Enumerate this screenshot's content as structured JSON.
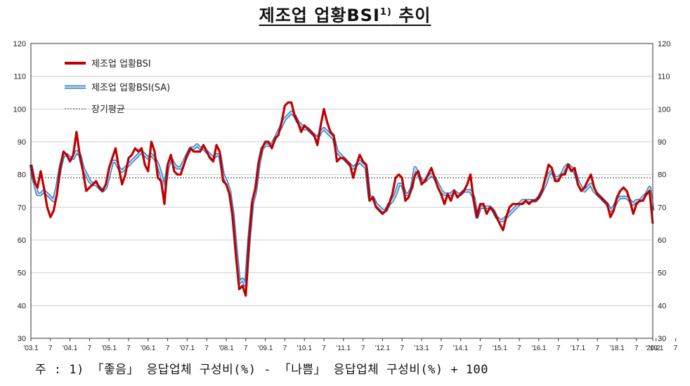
{
  "title": {
    "main": "제조업 업황BSI",
    "sup": "1)",
    "suffix": " 추이"
  },
  "note": "주 : 1) 「좋음」 응답업체 구성비(%) - 「나쁨」 응답업체 구성비(%) + 100",
  "colors": {
    "bsi": "#c00000",
    "sa_outer": "#3a7fc0",
    "sa_inner": "#bfe0f5",
    "avg": "#444444",
    "grid": "#cfcfcf",
    "frame": "#333333"
  },
  "chart_data": {
    "type": "line",
    "ylim": [
      30,
      120
    ],
    "yticks": [
      "30",
      "40",
      "50",
      "60",
      "70",
      "80",
      "90",
      "100",
      "110",
      "120"
    ],
    "x_start": "2003-01",
    "x_end": "2020-02",
    "xtick_labels": [
      "'03.1",
      "7",
      "'04.1",
      "7",
      "'05.1",
      "7",
      "'06.1",
      "7",
      "'07.1",
      "7",
      "'08.1",
      "7",
      "'09.1",
      "7",
      "'10.1",
      "7",
      "'11.1",
      "7",
      "'12.1",
      "7",
      "'13.1",
      "7",
      "'14.1",
      "7",
      "'15.1",
      "7",
      "'16.1",
      "7",
      "'17.1",
      "7",
      "'18.1",
      "7",
      "'19.1",
      "7",
      "'20.2"
    ],
    "grid": true,
    "legend": {
      "position": "top-left"
    },
    "long_term_average": 79,
    "series": [
      {
        "name": "제조업 업황BSI",
        "values": [
          83,
          78,
          76,
          81,
          76,
          70,
          67,
          69,
          74,
          82,
          87,
          86,
          84,
          86,
          93,
          86,
          81,
          75,
          76,
          77,
          78,
          76,
          75,
          77,
          82,
          85,
          88,
          82,
          77,
          80,
          85,
          86,
          88,
          87,
          88,
          83,
          81,
          90,
          87,
          79,
          78,
          71,
          83,
          86,
          81,
          80,
          80,
          83,
          86,
          88,
          87,
          87,
          87,
          89,
          87,
          85,
          84,
          89,
          87,
          78,
          77,
          74,
          67,
          55,
          45,
          46,
          43,
          60,
          72,
          76,
          84,
          88,
          90,
          90,
          88,
          91,
          92,
          96,
          101,
          102,
          102,
          98,
          96,
          93,
          95,
          94,
          93,
          92,
          89,
          95,
          100,
          96,
          93,
          92,
          84,
          85,
          85,
          84,
          83,
          79,
          83,
          86,
          84,
          83,
          72,
          73,
          70,
          69,
          68,
          69,
          71,
          74,
          79,
          80,
          79,
          72,
          73,
          76,
          80,
          81,
          77,
          78,
          80,
          82,
          79,
          76,
          74,
          71,
          74,
          72,
          75,
          73,
          74,
          75,
          77,
          80,
          72,
          67,
          71,
          71,
          68,
          70,
          69,
          67,
          65,
          63,
          67,
          70,
          71,
          71,
          71,
          71,
          72,
          71,
          72,
          72,
          73,
          75,
          79,
          83,
          82,
          78,
          78,
          80,
          80,
          83,
          81,
          82,
          77,
          75,
          76,
          78,
          80,
          76,
          74,
          73,
          72,
          71,
          67,
          69,
          73,
          75,
          76,
          75,
          72,
          68,
          71,
          72,
          72,
          74,
          75,
          65
        ],
        "style": "thick-red"
      },
      {
        "name": "제조업 업황BSI(SA)",
        "values": [
          83,
          78,
          74,
          74,
          75,
          74,
          73,
          72,
          76,
          82,
          86,
          86,
          85,
          85,
          87,
          86,
          82,
          80,
          78,
          77,
          77,
          76,
          75,
          76,
          80,
          84,
          84,
          82,
          81,
          82,
          83,
          84,
          85,
          86,
          87,
          86,
          85,
          86,
          85,
          83,
          80,
          75,
          82,
          85,
          83,
          82,
          82,
          84,
          86,
          88,
          88,
          89,
          88,
          88,
          87,
          86,
          85,
          86,
          86,
          80,
          78,
          75,
          68,
          57,
          47,
          48,
          46,
          60,
          71,
          75,
          83,
          88,
          89,
          89,
          89,
          91,
          93,
          95,
          97,
          98,
          99,
          98,
          96,
          95,
          94,
          94,
          93,
          92,
          91,
          93,
          94,
          93,
          92,
          91,
          87,
          86,
          85,
          84,
          83,
          82,
          83,
          84,
          83,
          82,
          73,
          73,
          71,
          70,
          69,
          69,
          71,
          72,
          74,
          77,
          77,
          74,
          74,
          76,
          82,
          80,
          78,
          78,
          79,
          80,
          79,
          77,
          75,
          74,
          74,
          74,
          75,
          74,
          74,
          75,
          75,
          75,
          73,
          67,
          70,
          70,
          70,
          70,
          69,
          67,
          66,
          66,
          67,
          68,
          69,
          70,
          71,
          72,
          72,
          72,
          72,
          72,
          73,
          75,
          77,
          80,
          81,
          79,
          79,
          80,
          82,
          83,
          82,
          81,
          78,
          76,
          75,
          76,
          77,
          75,
          74,
          73,
          72,
          71,
          69,
          70,
          72,
          73,
          73,
          73,
          72,
          71,
          72,
          72,
          73,
          74,
          76,
          69
        ],
        "style": "double-blue"
      },
      {
        "name": "장기평균",
        "values": [
          79,
          79
        ],
        "style": "dotted"
      }
    ]
  }
}
